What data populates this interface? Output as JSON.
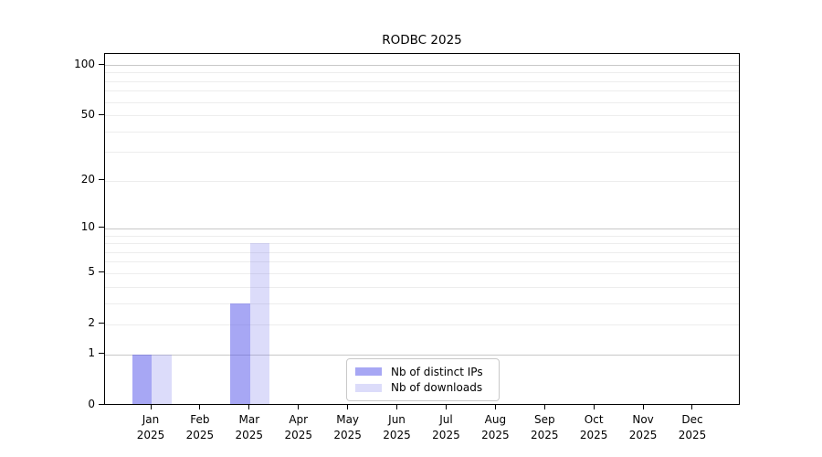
{
  "chart_data": {
    "type": "bar",
    "title": "RODBC 2025",
    "categories": [
      "Jan",
      "Feb",
      "Mar",
      "Apr",
      "May",
      "Jun",
      "Jul",
      "Aug",
      "Sep",
      "Oct",
      "Nov",
      "Dec"
    ],
    "year_label": "2025",
    "series": [
      {
        "key": "distinct-ips",
        "name": "Nb of distinct IPs",
        "color": "#a7a7f4",
        "fill": "rgba(79,79,233,0.5)",
        "values": [
          1,
          0,
          3,
          0,
          0,
          0,
          0,
          0,
          0,
          0,
          0,
          0
        ]
      },
      {
        "key": "downloads",
        "name": "Nb of downloads",
        "color": "#dcdcfa",
        "fill": "rgba(115,115,235,0.25)",
        "values": [
          1,
          0,
          8,
          0,
          0,
          0,
          0,
          0,
          0,
          0,
          0,
          0
        ]
      }
    ],
    "yscale": "log1p",
    "yticks": [
      0,
      1,
      2,
      5,
      10,
      20,
      50,
      100
    ],
    "ylim": [
      0,
      117
    ],
    "grid": {
      "major": [
        1,
        10,
        100
      ],
      "minor": [
        2,
        3,
        4,
        5,
        6,
        7,
        8,
        9,
        20,
        30,
        40,
        50,
        60,
        70,
        80,
        90
      ]
    },
    "grid_major_color": "#c8c8c8",
    "grid_minor_color": "#ededed",
    "axis_color": "#000000",
    "legend_position": "inside-bottom-center"
  }
}
